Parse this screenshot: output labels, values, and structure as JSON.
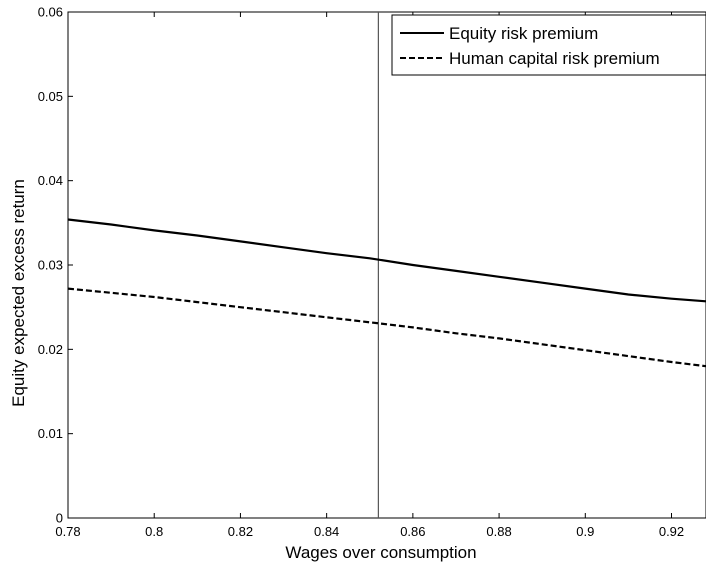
{
  "chart_data": {
    "type": "line",
    "xlabel": "Wages over consumption",
    "ylabel": "Equity expected excess return",
    "xlim": [
      0.78,
      0.928
    ],
    "ylim": [
      0,
      0.06
    ],
    "xticks": [
      0.78,
      0.8,
      0.82,
      0.84,
      0.86,
      0.88,
      0.9,
      0.92
    ],
    "xtick_labels": [
      "0.78",
      "0.8",
      "0.82",
      "0.84",
      "0.86",
      "0.88",
      "0.9",
      "0.92"
    ],
    "yticks": [
      0,
      0.01,
      0.02,
      0.03,
      0.04,
      0.05,
      0.06
    ],
    "ytick_labels": [
      "0",
      "0.01",
      "0.02",
      "0.03",
      "0.04",
      "0.05",
      "0.06"
    ],
    "grid": false,
    "legend_position": "top-right",
    "vline_x": 0.852,
    "series": [
      {
        "name": "Equity risk premium",
        "style": "solid",
        "x": [
          0.78,
          0.79,
          0.8,
          0.81,
          0.82,
          0.83,
          0.84,
          0.85,
          0.86,
          0.87,
          0.88,
          0.89,
          0.9,
          0.91,
          0.92,
          0.928
        ],
        "values": [
          0.0354,
          0.0348,
          0.0341,
          0.0335,
          0.0328,
          0.0321,
          0.0314,
          0.0308,
          0.03,
          0.0293,
          0.0286,
          0.0279,
          0.0272,
          0.0265,
          0.026,
          0.0257
        ]
      },
      {
        "name": "Human capital risk premium",
        "style": "dashed",
        "x": [
          0.78,
          0.79,
          0.8,
          0.81,
          0.82,
          0.83,
          0.84,
          0.85,
          0.86,
          0.87,
          0.88,
          0.89,
          0.9,
          0.91,
          0.92,
          0.928
        ],
        "values": [
          0.0272,
          0.0267,
          0.0262,
          0.0256,
          0.025,
          0.0244,
          0.0238,
          0.0232,
          0.0226,
          0.0219,
          0.0213,
          0.0206,
          0.0199,
          0.0192,
          0.0185,
          0.018
        ]
      }
    ]
  }
}
